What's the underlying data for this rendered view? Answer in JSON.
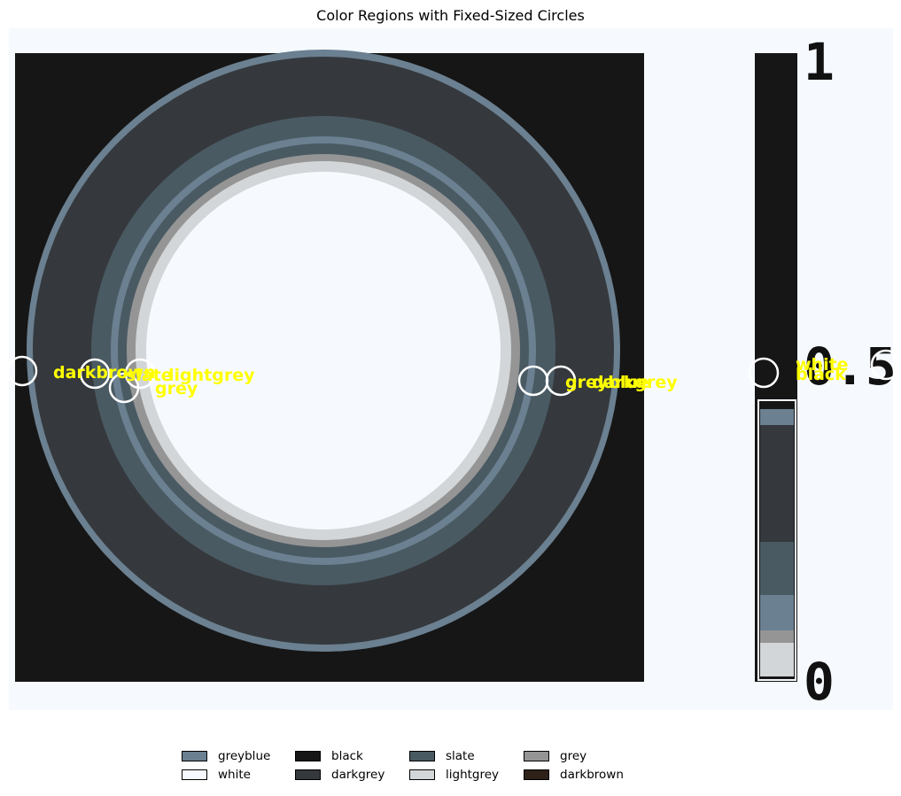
{
  "chart_data": {
    "type": "heatmap",
    "title": "Color Regions with Fixed-Sized Circles",
    "xlabel": "",
    "ylabel": "",
    "colorbar": {
      "ticks": [
        "1",
        "0.5",
        "0"
      ]
    },
    "regions": [
      {
        "name": "greyblue",
        "color": "#6b8091"
      },
      {
        "name": "white",
        "color": "#f6faff"
      },
      {
        "name": "black",
        "color": "#161616"
      },
      {
        "name": "darkgrey",
        "color": "#35393d"
      },
      {
        "name": "slate",
        "color": "#4a5a63"
      },
      {
        "name": "lightgrey",
        "color": "#d3d6d8"
      },
      {
        "name": "grey",
        "color": "#959595"
      },
      {
        "name": "darkbrown",
        "color": "#2e2118"
      }
    ],
    "circles": [
      {
        "label": "darkbrown"
      },
      {
        "label": "slate"
      },
      {
        "label": "lightgrey"
      },
      {
        "label": "grey"
      },
      {
        "label": "greyblue"
      },
      {
        "label": "darkgrey"
      },
      {
        "label": "white"
      },
      {
        "label": "black"
      }
    ],
    "legend": {
      "placement": "bottom-center",
      "columns": 5,
      "entries": [
        "greyblue",
        "white",
        "black",
        "darkgrey",
        "slate",
        "lightgrey",
        "grey",
        "darkbrown"
      ]
    },
    "label_color": "#ffff00",
    "circle_color": "#ffffff"
  }
}
